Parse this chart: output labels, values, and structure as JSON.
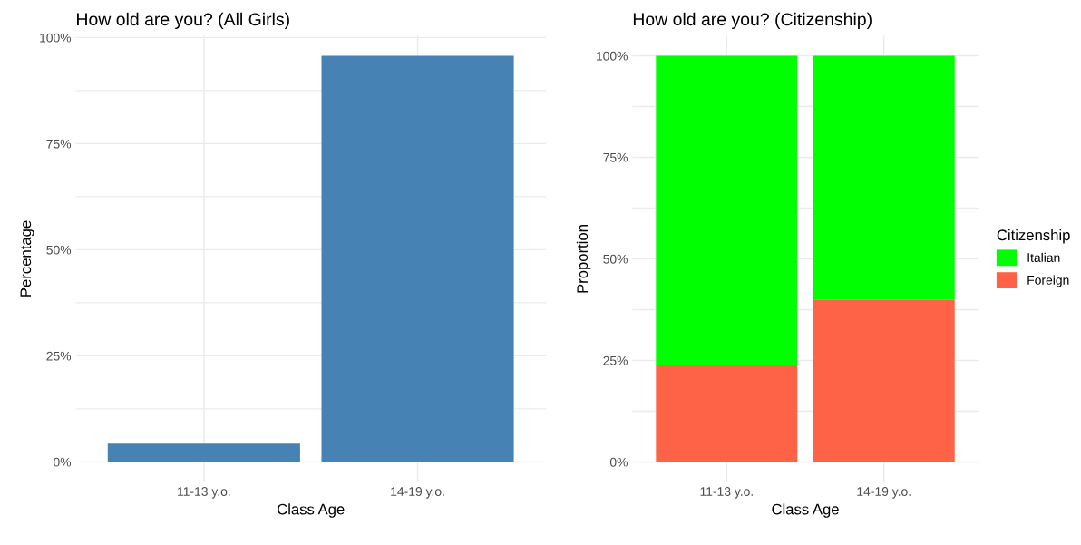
{
  "chart_data": [
    {
      "type": "bar",
      "title": "How old are you? (All Girls)",
      "xlabel": "Class Age",
      "ylabel": "Percentage",
      "categories": [
        "11-13 y.o.",
        "14-19 y.o."
      ],
      "values": [
        4.3,
        95.7
      ],
      "color": "#4682b4",
      "ylim": [
        -4.8,
        100.5
      ],
      "yticks": [
        {
          "value": 0,
          "label": "0%"
        },
        {
          "value": 12.5,
          "label": null
        },
        {
          "value": 25,
          "label": "25%"
        },
        {
          "value": 37.5,
          "label": null
        },
        {
          "value": 50,
          "label": "50%"
        },
        {
          "value": 62.5,
          "label": null
        },
        {
          "value": 75,
          "label": "75%"
        },
        {
          "value": 87.5,
          "label": null
        },
        {
          "value": 100,
          "label": "100%"
        }
      ],
      "grid": true,
      "legend": false
    },
    {
      "type": "bar",
      "title": "How old are you? (Citizenship)",
      "xlabel": "Class Age",
      "ylabel": "Proportion",
      "legend_title": "Citizenship",
      "categories": [
        "11-13 y.o.",
        "14-19 y.o."
      ],
      "stacked": true,
      "series": [
        {
          "name": "Foreign",
          "color": "#ff6347",
          "values": [
            23.8,
            40
          ]
        },
        {
          "name": "Italian",
          "color": "#00ff00",
          "values": [
            76.2,
            60
          ]
        }
      ],
      "ylim": [
        -5,
        105
      ],
      "yticks": [
        {
          "value": 0,
          "label": "0%"
        },
        {
          "value": 12.5,
          "label": null
        },
        {
          "value": 25,
          "label": "25%"
        },
        {
          "value": 37.5,
          "label": null
        },
        {
          "value": 50,
          "label": "50%"
        },
        {
          "value": 62.5,
          "label": null
        },
        {
          "value": 75,
          "label": "75%"
        },
        {
          "value": 87.5,
          "label": null
        },
        {
          "value": 100,
          "label": "100%"
        }
      ],
      "grid": true,
      "legend": "right"
    }
  ]
}
